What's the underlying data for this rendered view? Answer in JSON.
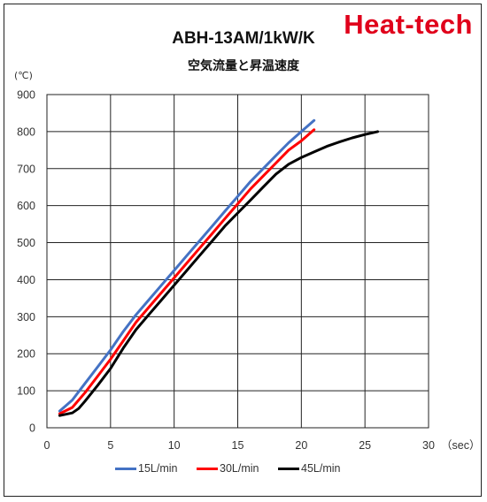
{
  "brand": "Heat-tech",
  "chart_data": {
    "type": "line",
    "title": "ABH-13AM/1kW/K",
    "subtitle": "空気流量と昇温速度",
    "ylabel": "(℃)",
    "xlabel": "（sec）",
    "xlim": [
      0,
      30
    ],
    "ylim": [
      0,
      900
    ],
    "x_ticks": [
      0,
      5,
      10,
      15,
      20,
      25,
      30
    ],
    "y_ticks": [
      0,
      100,
      200,
      300,
      400,
      500,
      600,
      700,
      800,
      900
    ],
    "grid": true,
    "legend_position": "bottom",
    "series": [
      {
        "name": "15L/min",
        "color": "#4472c4",
        "points": [
          [
            1,
            45
          ],
          [
            2,
            75
          ],
          [
            3,
            120
          ],
          [
            4,
            165
          ],
          [
            5,
            210
          ],
          [
            6,
            260
          ],
          [
            7,
            305
          ],
          [
            8,
            345
          ],
          [
            9,
            385
          ],
          [
            10,
            425
          ],
          [
            11,
            465
          ],
          [
            12,
            505
          ],
          [
            13,
            545
          ],
          [
            14,
            585
          ],
          [
            15,
            625
          ],
          [
            16,
            665
          ],
          [
            17,
            700
          ],
          [
            18,
            735
          ],
          [
            19,
            770
          ],
          [
            20,
            800
          ],
          [
            21,
            830
          ]
        ]
      },
      {
        "name": "30L/min",
        "color": "#ff0000",
        "points": [
          [
            1,
            38
          ],
          [
            2,
            55
          ],
          [
            3,
            95
          ],
          [
            4,
            140
          ],
          [
            5,
            185
          ],
          [
            6,
            235
          ],
          [
            7,
            285
          ],
          [
            8,
            325
          ],
          [
            9,
            365
          ],
          [
            10,
            405
          ],
          [
            11,
            445
          ],
          [
            12,
            485
          ],
          [
            13,
            525
          ],
          [
            14,
            565
          ],
          [
            15,
            605
          ],
          [
            16,
            645
          ],
          [
            17,
            680
          ],
          [
            18,
            715
          ],
          [
            19,
            750
          ],
          [
            20,
            775
          ],
          [
            21,
            805
          ]
        ]
      },
      {
        "name": "45L/min",
        "color": "#000000",
        "points": [
          [
            1,
            33
          ],
          [
            2,
            40
          ],
          [
            2.5,
            52
          ],
          [
            3,
            72
          ],
          [
            4,
            115
          ],
          [
            5,
            160
          ],
          [
            6,
            215
          ],
          [
            7,
            265
          ],
          [
            8,
            305
          ],
          [
            9,
            345
          ],
          [
            10,
            385
          ],
          [
            11,
            425
          ],
          [
            12,
            465
          ],
          [
            13,
            505
          ],
          [
            14,
            545
          ],
          [
            15,
            580
          ],
          [
            16,
            615
          ],
          [
            17,
            650
          ],
          [
            18,
            685
          ],
          [
            19,
            712
          ],
          [
            20,
            730
          ],
          [
            21,
            745
          ],
          [
            22,
            760
          ],
          [
            23,
            772
          ],
          [
            24,
            783
          ],
          [
            25,
            792
          ],
          [
            26,
            800
          ]
        ]
      }
    ]
  }
}
